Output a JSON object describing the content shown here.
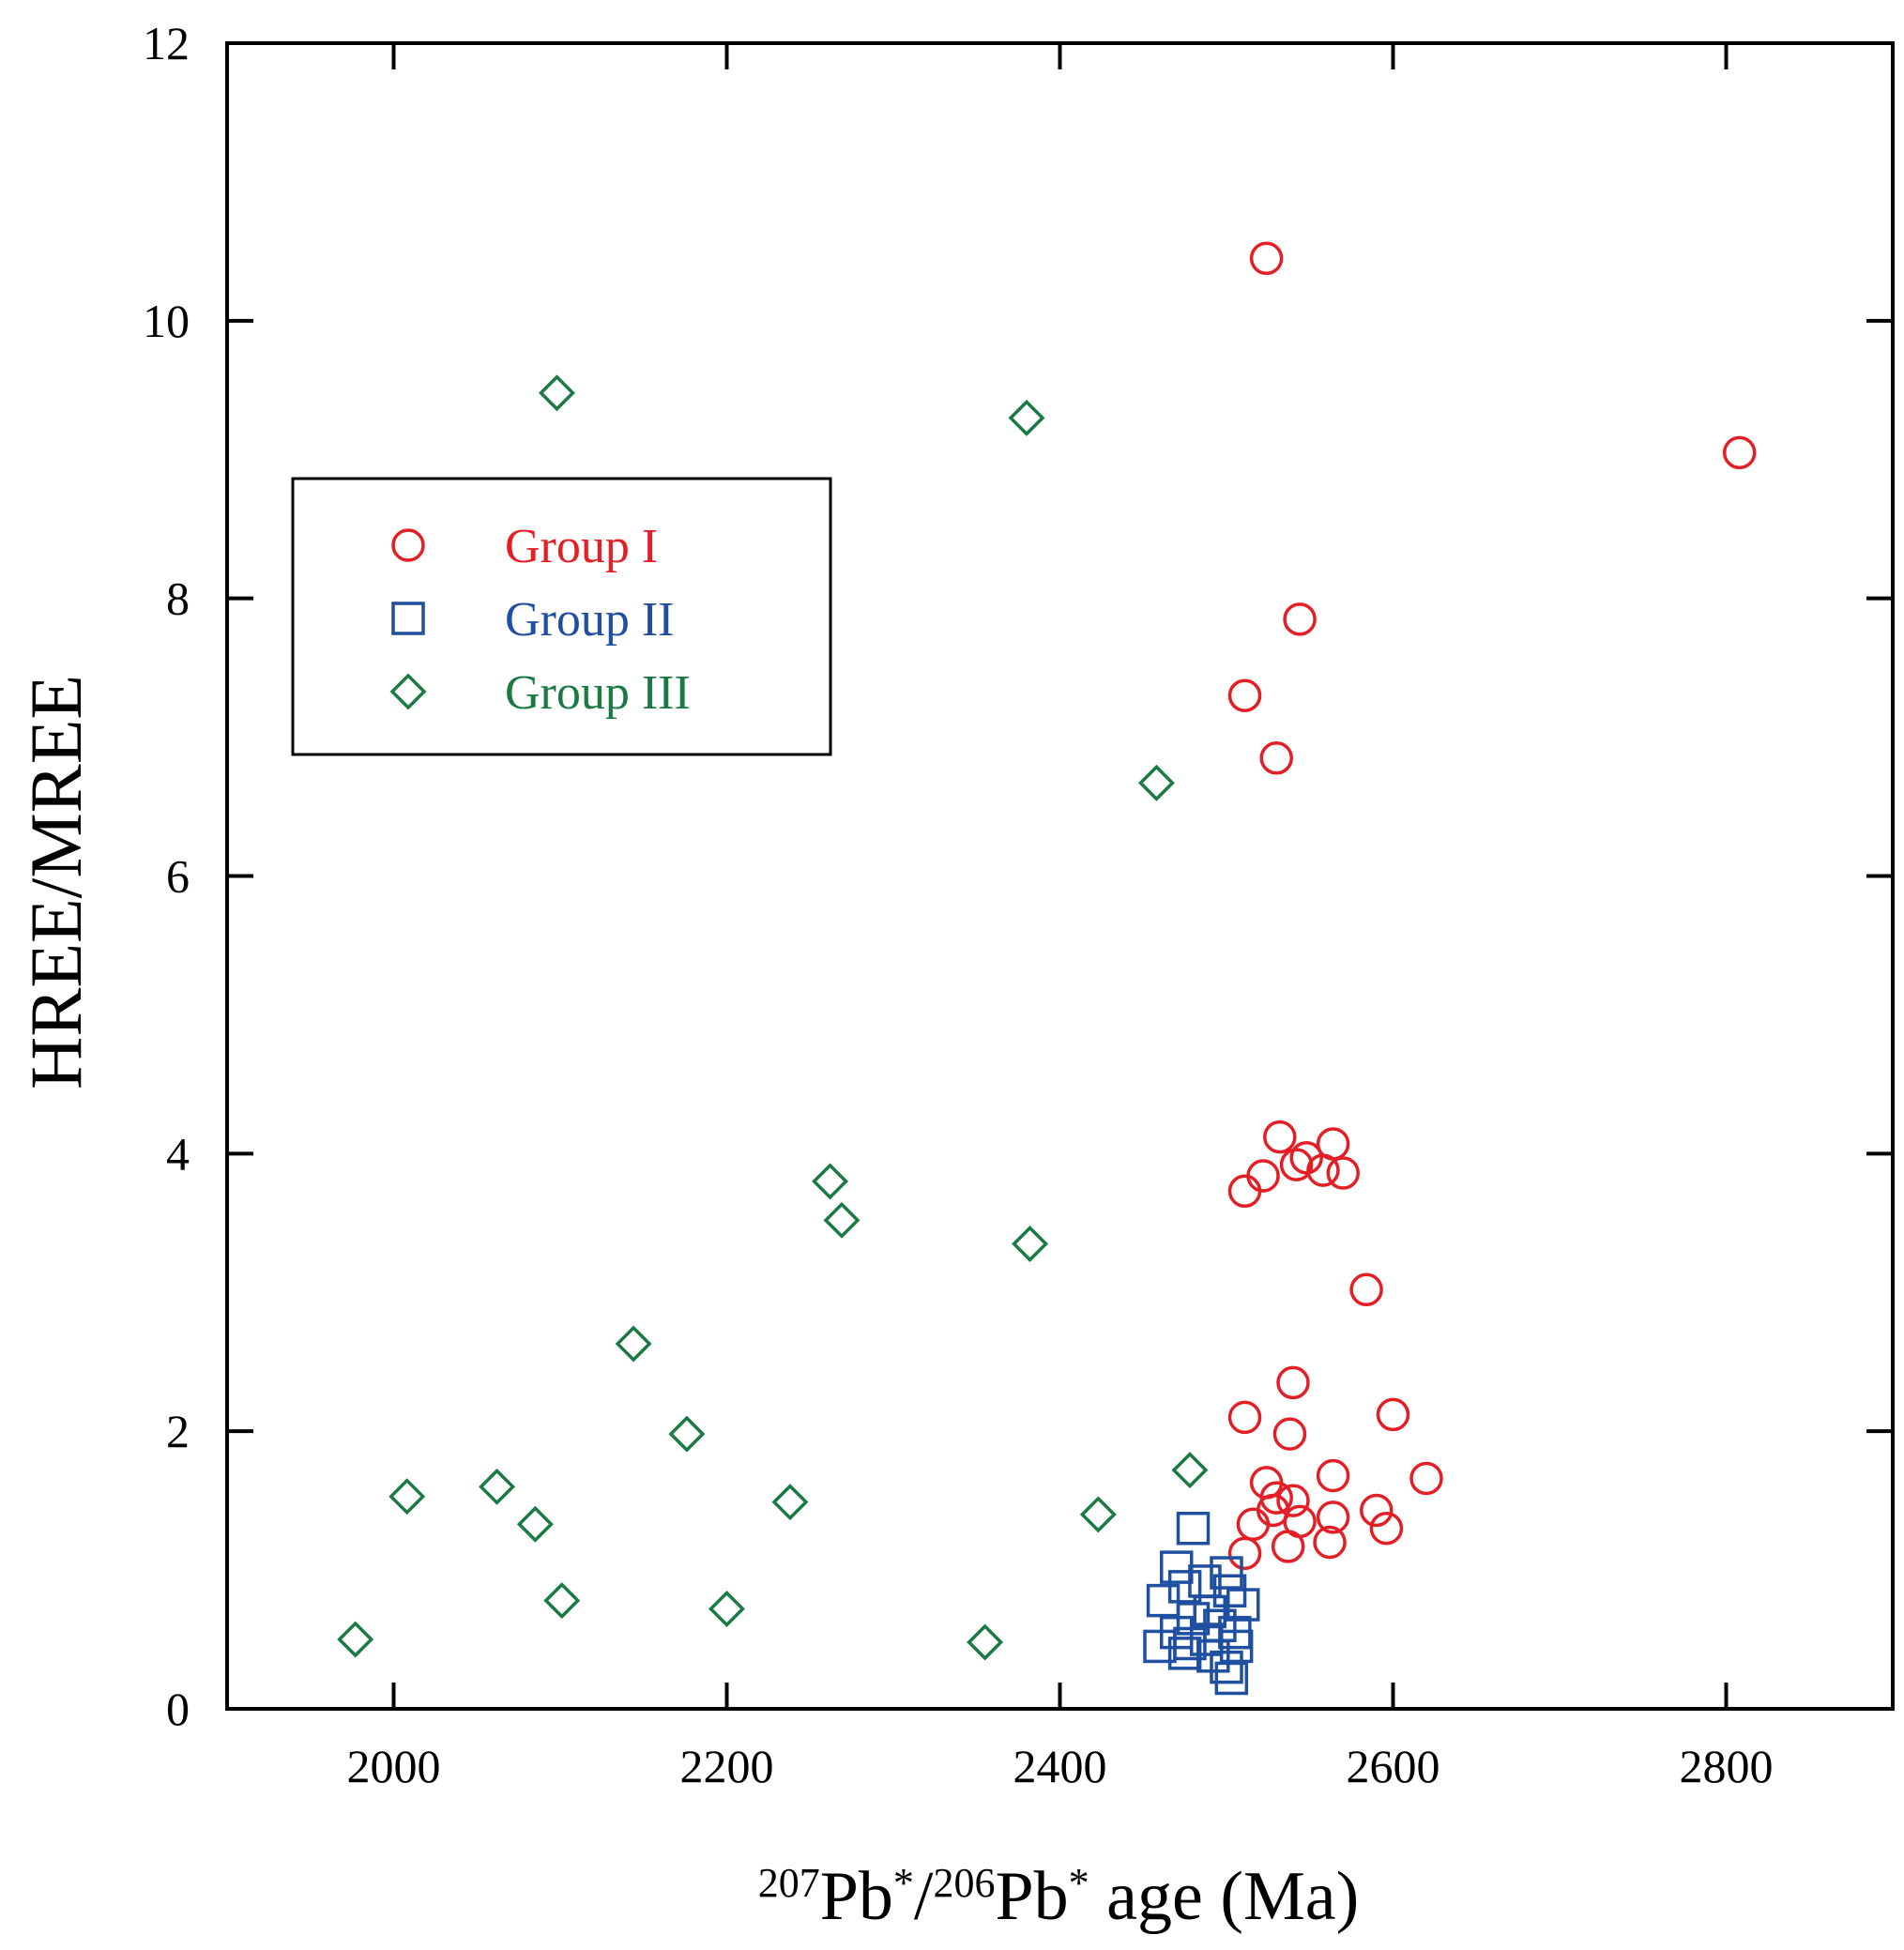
{
  "chart_data": {
    "type": "scatter",
    "title": "",
    "xlabel": {
      "parts": [
        {
          "text": "207",
          "sup": true
        },
        {
          "text": "Pb",
          "sup": false
        },
        {
          "text": "*",
          "sup": true
        },
        {
          "text": "/",
          "sup": false
        },
        {
          "text": "206",
          "sup": true
        },
        {
          "text": "Pb",
          "sup": false
        },
        {
          "text": "*",
          "sup": true
        },
        {
          "text": " age (Ma)",
          "sup": false
        }
      ]
    },
    "ylabel": "HREE/MREE",
    "xlim": [
      1900,
      2900
    ],
    "ylim": [
      0,
      12
    ],
    "xticks": [
      2000,
      2200,
      2400,
      2600,
      2800
    ],
    "yticks": [
      0,
      2,
      4,
      6,
      8,
      10,
      12
    ],
    "grid": false,
    "legend_position": "upper-left",
    "series": [
      {
        "name": "Group I",
        "marker": "circle",
        "color": "#e31e24",
        "points": [
          [
            2524,
            10.45
          ],
          [
            2808,
            9.05
          ],
          [
            2544,
            7.85
          ],
          [
            2511,
            7.3
          ],
          [
            2530,
            6.85
          ],
          [
            2532,
            4.12
          ],
          [
            2564,
            4.07
          ],
          [
            2548,
            3.97
          ],
          [
            2542,
            3.92
          ],
          [
            2558,
            3.88
          ],
          [
            2570,
            3.86
          ],
          [
            2522,
            3.84
          ],
          [
            2511,
            3.73
          ],
          [
            2584,
            3.02
          ],
          [
            2540,
            2.35
          ],
          [
            2600,
            2.12
          ],
          [
            2511,
            2.1
          ],
          [
            2538,
            1.98
          ],
          [
            2564,
            1.68
          ],
          [
            2620,
            1.66
          ],
          [
            2524,
            1.63
          ],
          [
            2530,
            1.52
          ],
          [
            2540,
            1.5
          ],
          [
            2590,
            1.43
          ],
          [
            2528,
            1.43
          ],
          [
            2564,
            1.38
          ],
          [
            2544,
            1.35
          ],
          [
            2516,
            1.33
          ],
          [
            2596,
            1.3
          ],
          [
            2562,
            1.2
          ],
          [
            2537,
            1.17
          ],
          [
            2511,
            1.12
          ]
        ]
      },
      {
        "name": "Group II",
        "marker": "square",
        "color": "#1e4fa0",
        "points": [
          [
            2480,
            1.3
          ],
          [
            2470,
            1.02
          ],
          [
            2500,
            0.98
          ],
          [
            2487,
            0.92
          ],
          [
            2475,
            0.88
          ],
          [
            2502,
            0.85
          ],
          [
            2462,
            0.78
          ],
          [
            2510,
            0.75
          ],
          [
            2490,
            0.7
          ],
          [
            2480,
            0.65
          ],
          [
            2496,
            0.6
          ],
          [
            2470,
            0.55
          ],
          [
            2505,
            0.55
          ],
          [
            2488,
            0.5
          ],
          [
            2478,
            0.47
          ],
          [
            2460,
            0.45
          ],
          [
            2506,
            0.45
          ],
          [
            2492,
            0.38
          ],
          [
            2475,
            0.4
          ],
          [
            2500,
            0.3
          ],
          [
            2503,
            0.22
          ]
        ]
      },
      {
        "name": "Group III",
        "marker": "diamond",
        "color": "#1a7a43",
        "points": [
          [
            2098,
            9.48
          ],
          [
            2380,
            9.3
          ],
          [
            2458,
            6.67
          ],
          [
            2262,
            3.8
          ],
          [
            2269,
            3.52
          ],
          [
            2382,
            3.35
          ],
          [
            2144,
            2.63
          ],
          [
            2176,
            1.98
          ],
          [
            2478,
            1.72
          ],
          [
            2062,
            1.6
          ],
          [
            2008,
            1.53
          ],
          [
            2238,
            1.49
          ],
          [
            2085,
            1.33
          ],
          [
            2423,
            1.4
          ],
          [
            2101,
            0.78
          ],
          [
            2200,
            0.72
          ],
          [
            2355,
            0.48
          ],
          [
            1977,
            0.5
          ]
        ]
      }
    ]
  }
}
